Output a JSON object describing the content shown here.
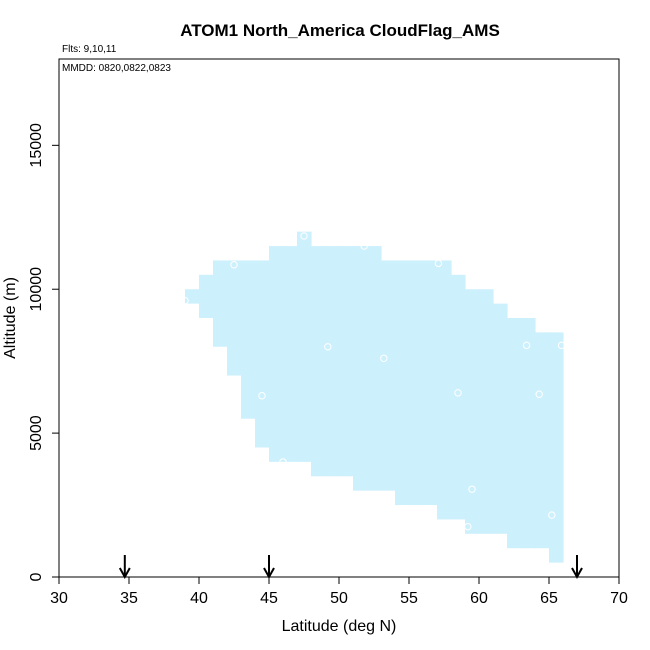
{
  "chart_data": {
    "type": "heatmap",
    "title": "ATOM1 North_America CloudFlag_AMS",
    "flights_note": "Flts: 9,10,11",
    "dates_note": "MMDD: 0820,0822,0823",
    "xlabel": "Latitude (deg N)",
    "ylabel": "Altitude (m)",
    "xlim": [
      30,
      70
    ],
    "ylim": [
      0,
      18000
    ],
    "x_ticks": [
      30,
      35,
      40,
      45,
      50,
      55,
      60,
      65,
      70
    ],
    "y_ticks": [
      0,
      5000,
      10000,
      15000
    ],
    "fill_color": "#cdf0fd",
    "marker_color": "#ffffff",
    "arrow_latitudes": [
      34.7,
      45.0,
      67.0
    ],
    "cells": [
      {
        "lat": [
          39,
          40
        ],
        "alt": [
          9500,
          10000
        ]
      },
      {
        "lat": [
          40,
          41
        ],
        "alt": [
          9000,
          10500
        ]
      },
      {
        "lat": [
          41,
          42
        ],
        "alt": [
          8000,
          11000
        ]
      },
      {
        "lat": [
          42,
          43
        ],
        "alt": [
          7000,
          11000
        ]
      },
      {
        "lat": [
          43,
          44
        ],
        "alt": [
          5500,
          11000
        ]
      },
      {
        "lat": [
          44,
          45
        ],
        "alt": [
          4500,
          11000
        ]
      },
      {
        "lat": [
          45,
          46
        ],
        "alt": [
          4000,
          11500
        ]
      },
      {
        "lat": [
          46,
          47
        ],
        "alt": [
          4000,
          11500
        ]
      },
      {
        "lat": [
          47,
          48
        ],
        "alt": [
          4000,
          12000
        ]
      },
      {
        "lat": [
          48,
          49
        ],
        "alt": [
          3500,
          11500
        ]
      },
      {
        "lat": [
          49,
          50
        ],
        "alt": [
          3500,
          11500
        ]
      },
      {
        "lat": [
          50,
          51
        ],
        "alt": [
          3500,
          11500
        ]
      },
      {
        "lat": [
          51,
          52
        ],
        "alt": [
          3000,
          11500
        ]
      },
      {
        "lat": [
          52,
          53
        ],
        "alt": [
          3000,
          11500
        ]
      },
      {
        "lat": [
          53,
          54
        ],
        "alt": [
          3000,
          11000
        ]
      },
      {
        "lat": [
          54,
          55
        ],
        "alt": [
          2500,
          11000
        ]
      },
      {
        "lat": [
          55,
          56
        ],
        "alt": [
          2500,
          11000
        ]
      },
      {
        "lat": [
          56,
          57
        ],
        "alt": [
          2500,
          11000
        ]
      },
      {
        "lat": [
          57,
          58
        ],
        "alt": [
          2000,
          11000
        ]
      },
      {
        "lat": [
          58,
          59
        ],
        "alt": [
          2000,
          10500
        ]
      },
      {
        "lat": [
          59,
          60
        ],
        "alt": [
          1500,
          10000
        ]
      },
      {
        "lat": [
          60,
          61
        ],
        "alt": [
          1500,
          10000
        ]
      },
      {
        "lat": [
          61,
          62
        ],
        "alt": [
          1500,
          9500
        ]
      },
      {
        "lat": [
          62,
          63
        ],
        "alt": [
          1000,
          9000
        ]
      },
      {
        "lat": [
          63,
          64
        ],
        "alt": [
          1000,
          9000
        ]
      },
      {
        "lat": [
          64,
          65
        ],
        "alt": [
          1000,
          8500
        ]
      },
      {
        "lat": [
          65,
          66
        ],
        "alt": [
          500,
          8500
        ]
      }
    ],
    "markers": [
      {
        "lat": 39.0,
        "alt": 9600
      },
      {
        "lat": 42.5,
        "alt": 10850
      },
      {
        "lat": 44.5,
        "alt": 6300
      },
      {
        "lat": 46.0,
        "alt": 4000
      },
      {
        "lat": 47.5,
        "alt": 11850
      },
      {
        "lat": 49.2,
        "alt": 8000
      },
      {
        "lat": 51.8,
        "alt": 11500
      },
      {
        "lat": 53.2,
        "alt": 7600
      },
      {
        "lat": 57.1,
        "alt": 10900
      },
      {
        "lat": 58.5,
        "alt": 6400
      },
      {
        "lat": 59.5,
        "alt": 3050
      },
      {
        "lat": 59.2,
        "alt": 1750
      },
      {
        "lat": 63.4,
        "alt": 8050
      },
      {
        "lat": 64.3,
        "alt": 6350
      },
      {
        "lat": 65.2,
        "alt": 2150
      },
      {
        "lat": 65.9,
        "alt": 8050
      }
    ]
  }
}
